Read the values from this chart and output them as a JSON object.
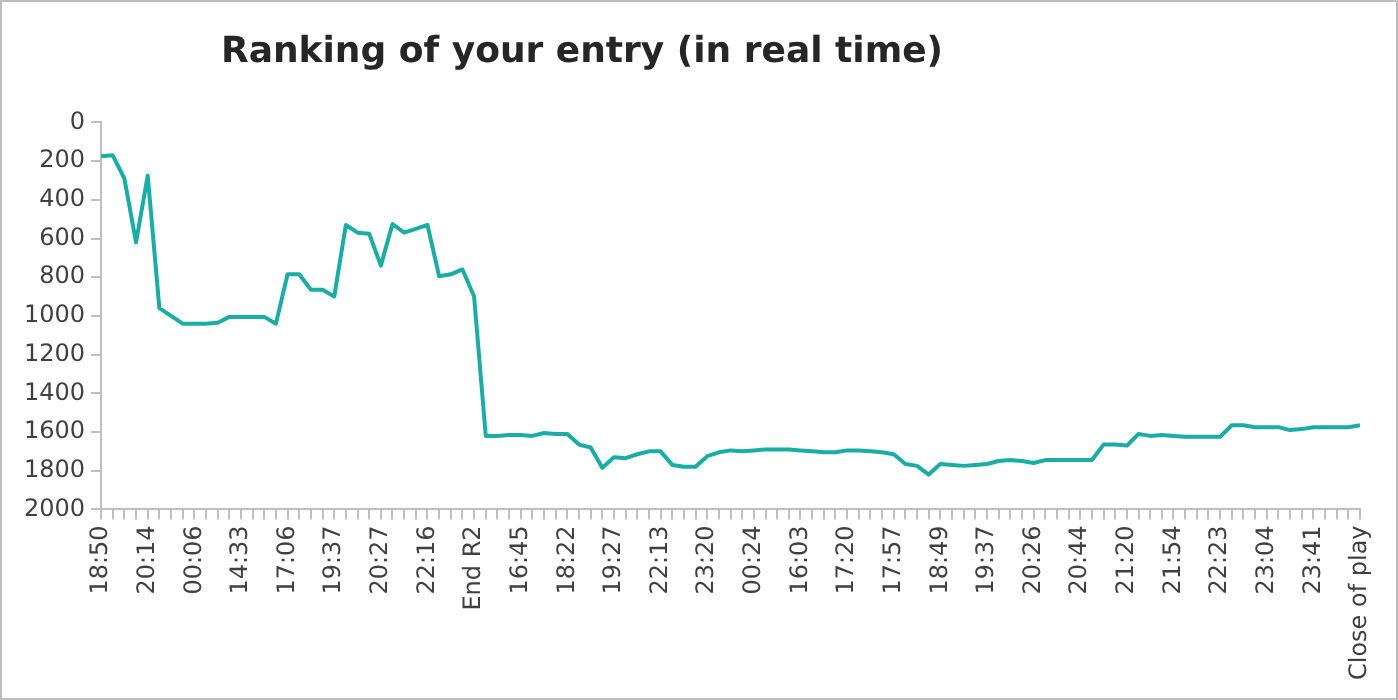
{
  "chart_data": {
    "type": "line",
    "title": "Ranking of your entry (in real time)",
    "categories": [
      "18:50",
      null,
      null,
      null,
      "20:14",
      null,
      null,
      null,
      "00:06",
      null,
      null,
      null,
      "14:33",
      null,
      null,
      null,
      "17:06",
      null,
      null,
      null,
      "19:37",
      null,
      null,
      null,
      "20:27",
      null,
      null,
      null,
      "22:16",
      null,
      null,
      null,
      "End R2",
      null,
      null,
      null,
      "16:45",
      null,
      null,
      null,
      "18:22",
      null,
      null,
      null,
      "19:27",
      null,
      null,
      null,
      "22:13",
      null,
      null,
      null,
      "23:20",
      null,
      null,
      null,
      "00:24",
      null,
      null,
      null,
      "16:03",
      null,
      null,
      null,
      "17:20",
      null,
      null,
      null,
      "17:57",
      null,
      null,
      null,
      "18:49",
      null,
      null,
      null,
      "19:37",
      null,
      null,
      null,
      "20:26",
      null,
      null,
      null,
      "20:44",
      null,
      null,
      null,
      "21:20",
      null,
      null,
      null,
      "21:54",
      null,
      null,
      null,
      "22:23",
      null,
      null,
      null,
      "23:04",
      null,
      null,
      null,
      "23:41",
      null,
      null,
      null,
      "Close of play"
    ],
    "series": [
      {
        "color": "#1aada6",
        "values": [
          175,
          170,
          290,
          620,
          275,
          960,
          1000,
          1040,
          1040,
          1040,
          1035,
          1005,
          1005,
          1005,
          1005,
          1040,
          785,
          785,
          865,
          865,
          900,
          530,
          570,
          575,
          740,
          525,
          570,
          550,
          530,
          795,
          785,
          760,
          900,
          1620,
          1620,
          1615,
          1615,
          1620,
          1605,
          1610,
          1610,
          1665,
          1680,
          1785,
          1730,
          1735,
          1715,
          1700,
          1700,
          1770,
          1780,
          1780,
          1725,
          1705,
          1695,
          1700,
          1695,
          1690,
          1690,
          1690,
          1695,
          1700,
          1705,
          1705,
          1695,
          1695,
          1700,
          1705,
          1715,
          1765,
          1775,
          1820,
          1765,
          1770,
          1775,
          1770,
          1765,
          1750,
          1745,
          1750,
          1760,
          1745,
          1745,
          1745,
          1745,
          1745,
          1665,
          1665,
          1670,
          1610,
          1620,
          1615,
          1620,
          1625,
          1625,
          1625,
          1625,
          1565,
          1565,
          1575,
          1575,
          1575,
          1590,
          1585,
          1575,
          1575,
          1575,
          1575,
          1565
        ]
      }
    ],
    "ylim": [
      2000,
      0
    ],
    "yticks": [
      0,
      200,
      400,
      600,
      800,
      1000,
      1200,
      1400,
      1600,
      1800,
      2000
    ],
    "grid": false,
    "legend": false,
    "marker": "none",
    "line_style": "solid"
  }
}
